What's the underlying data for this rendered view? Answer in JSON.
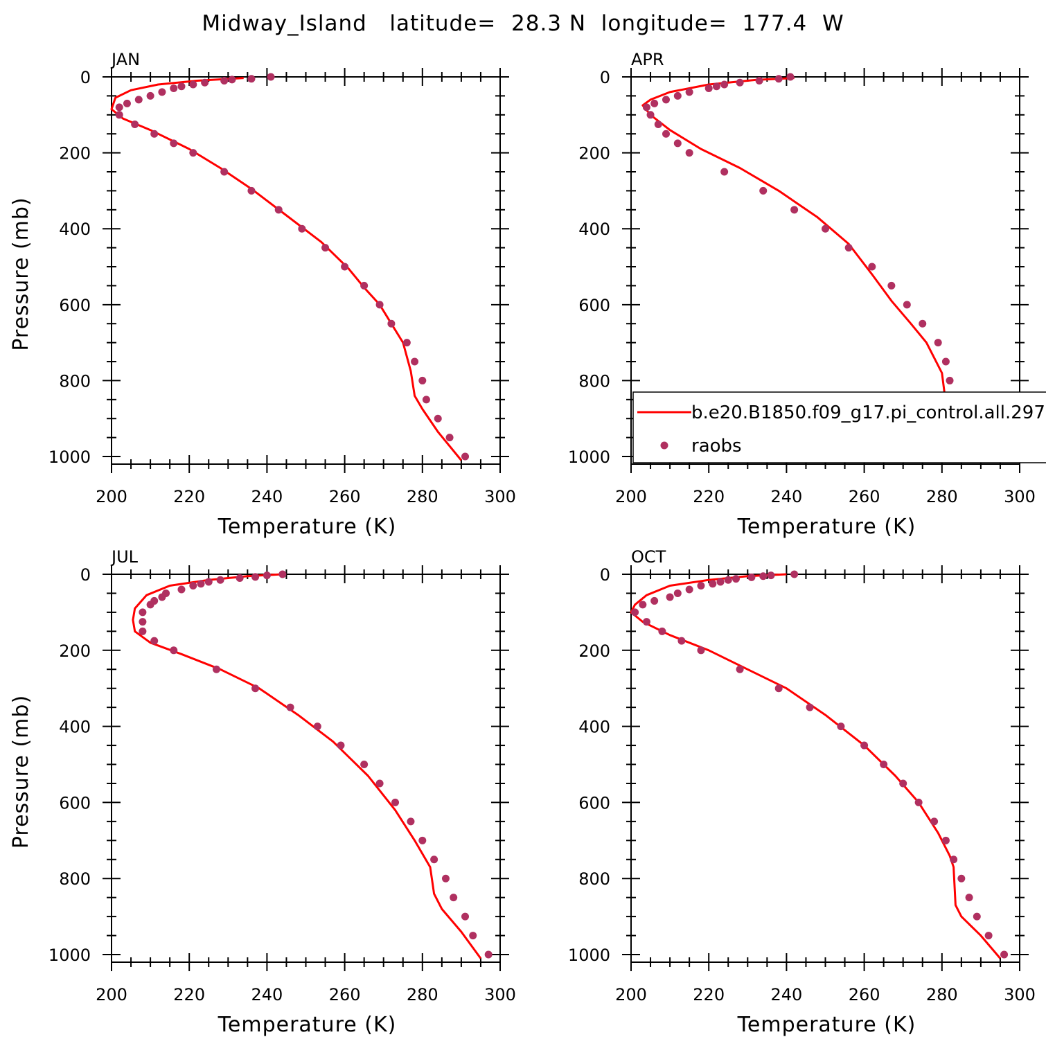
{
  "figure": {
    "title": "Midway_Island   latitude=  28.3 N  longitude=  177.4  W"
  },
  "legend": {
    "panel": 1,
    "entries": [
      {
        "label": "b.e20.B1850.f09_g17.pi_control.all.297",
        "color": "#ff0000",
        "marker": "line"
      },
      {
        "label": "raobs",
        "color": "#b03060",
        "marker": "dot"
      }
    ]
  },
  "chart_data": [
    {
      "type": "line",
      "title": "JAN",
      "xlabel": "Temperature (K)",
      "ylabel": "Pressure (mb)",
      "xlim": [
        200,
        300
      ],
      "ylim": [
        0,
        1020
      ],
      "y_inverted": true,
      "xticks": [
        200,
        220,
        240,
        260,
        280,
        300
      ],
      "yticks": [
        0,
        200,
        400,
        600,
        800,
        1000
      ],
      "grid": false,
      "series": [
        {
          "name": "b.e20.B1850.f09_g17.pi_control.all.297",
          "type": "line",
          "color": "#ff0000",
          "x": [
            234,
            222,
            212,
            205,
            201,
            200,
            203,
            210,
            220,
            228,
            236,
            245,
            254,
            261,
            265,
            269,
            272,
            275,
            277,
            278,
            280,
            284,
            290
          ],
          "y": [
            3,
            10,
            20,
            35,
            55,
            85,
            110,
            140,
            190,
            240,
            295,
            365,
            435,
            505,
            555,
            600,
            650,
            700,
            775,
            840,
            875,
            935,
            1010
          ]
        },
        {
          "name": "raobs",
          "type": "scatter",
          "color": "#b03060",
          "x": [
            241,
            236,
            231,
            229,
            224,
            221,
            218,
            216,
            213,
            210,
            207,
            204,
            202,
            202,
            206,
            211,
            216,
            221,
            229,
            236,
            243,
            249,
            255,
            260,
            265,
            269,
            272,
            276,
            278,
            280,
            281,
            284,
            287,
            291
          ],
          "y": [
            0,
            5,
            7,
            10,
            15,
            20,
            25,
            30,
            40,
            50,
            60,
            70,
            80,
            100,
            125,
            150,
            175,
            200,
            250,
            300,
            350,
            400,
            450,
            500,
            550,
            600,
            650,
            700,
            750,
            800,
            850,
            900,
            950,
            1000
          ]
        }
      ]
    },
    {
      "type": "line",
      "title": "APR",
      "xlabel": "Temperature (K)",
      "ylabel": "",
      "xlim": [
        200,
        300
      ],
      "ylim": [
        0,
        1020
      ],
      "y_inverted": true,
      "xticks": [
        200,
        220,
        240,
        260,
        280,
        300
      ],
      "yticks": [
        0,
        200,
        400,
        600,
        800,
        1000
      ],
      "grid": false,
      "series": [
        {
          "name": "b.e20.B1850.f09_g17.pi_control.all.297",
          "type": "line",
          "color": "#ff0000",
          "x": [
            242,
            232,
            220,
            210,
            205,
            203,
            205,
            210,
            218,
            228,
            238,
            248,
            256,
            262,
            267,
            272,
            276,
            279,
            280,
            281,
            283,
            286,
            290
          ],
          "y": [
            3,
            8,
            20,
            40,
            60,
            75,
            100,
            140,
            190,
            240,
            300,
            370,
            440,
            520,
            590,
            650,
            700,
            760,
            780,
            860,
            900,
            950,
            1015
          ]
        },
        {
          "name": "raobs",
          "type": "scatter",
          "color": "#b03060",
          "x": [
            241,
            238,
            233,
            228,
            224,
            222,
            220,
            215,
            212,
            209,
            206,
            204,
            205,
            207,
            209,
            212,
            215,
            224,
            234,
            242,
            250,
            256,
            262,
            267,
            271,
            275,
            279,
            281,
            282,
            283,
            284,
            288,
            291
          ],
          "y": [
            0,
            5,
            10,
            15,
            20,
            25,
            30,
            40,
            50,
            60,
            70,
            80,
            100,
            125,
            150,
            175,
            200,
            250,
            300,
            350,
            400,
            450,
            500,
            550,
            600,
            650,
            700,
            750,
            800,
            850,
            900,
            950,
            1000
          ]
        }
      ]
    },
    {
      "type": "line",
      "title": "JUL",
      "xlabel": "Temperature (K)",
      "ylabel": "Pressure (mb)",
      "xlim": [
        200,
        300
      ],
      "ylim": [
        0,
        1020
      ],
      "y_inverted": true,
      "xticks": [
        200,
        220,
        240,
        260,
        280,
        300
      ],
      "yticks": [
        0,
        200,
        400,
        600,
        800,
        1000
      ],
      "grid": false,
      "series": [
        {
          "name": "b.e20.B1850.f09_g17.pi_control.all.297",
          "type": "line",
          "color": "#ff0000",
          "x": [
            244,
            235,
            225,
            215,
            209,
            206,
            205.5,
            206,
            210,
            218,
            228,
            238,
            248,
            257,
            266,
            273,
            278,
            282,
            283,
            285,
            290,
            295
          ],
          "y": [
            0,
            5,
            15,
            30,
            55,
            90,
            120,
            150,
            180,
            210,
            250,
            300,
            370,
            440,
            530,
            620,
            700,
            770,
            840,
            880,
            940,
            1010
          ]
        },
        {
          "name": "raobs",
          "type": "scatter",
          "color": "#b03060",
          "x": [
            244,
            240,
            237,
            233,
            228,
            225,
            223,
            221,
            218,
            214,
            213,
            211,
            210,
            208,
            208,
            208,
            211,
            216,
            227,
            237,
            246,
            253,
            259,
            265,
            269,
            273,
            277,
            280,
            283,
            286,
            288,
            291,
            293,
            297
          ],
          "y": [
            0,
            3,
            7,
            10,
            15,
            20,
            25,
            30,
            40,
            50,
            60,
            70,
            80,
            100,
            125,
            150,
            175,
            200,
            250,
            300,
            350,
            400,
            450,
            500,
            550,
            600,
            650,
            700,
            750,
            800,
            850,
            900,
            950,
            1000
          ]
        }
      ]
    },
    {
      "type": "line",
      "title": "OCT",
      "xlabel": "Temperature (K)",
      "ylabel": "",
      "xlim": [
        200,
        300
      ],
      "ylim": [
        0,
        1020
      ],
      "y_inverted": true,
      "xticks": [
        200,
        220,
        240,
        260,
        280,
        300
      ],
      "yticks": [
        0,
        200,
        400,
        600,
        800,
        1000
      ],
      "grid": false,
      "series": [
        {
          "name": "b.e20.B1850.f09_g17.pi_control.all.297",
          "type": "line",
          "color": "#ff0000",
          "x": [
            240,
            230,
            220,
            210,
            204,
            201,
            200,
            203,
            210,
            220,
            230,
            240,
            250,
            260,
            268,
            274,
            279,
            282,
            283,
            283.5,
            285,
            290,
            295
          ],
          "y": [
            0,
            5,
            15,
            30,
            55,
            80,
            100,
            125,
            160,
            200,
            250,
            300,
            370,
            450,
            530,
            600,
            680,
            740,
            770,
            870,
            900,
            950,
            1010
          ]
        },
        {
          "name": "raobs",
          "type": "scatter",
          "color": "#b03060",
          "x": [
            242,
            236,
            234,
            231,
            227,
            225,
            223,
            221,
            218,
            215,
            212,
            210,
            206,
            203,
            201,
            204,
            208,
            213,
            218,
            228,
            238,
            246,
            254,
            260,
            265,
            270,
            274,
            278,
            281,
            283,
            285,
            287,
            289,
            292,
            296
          ],
          "y": [
            0,
            3,
            5,
            8,
            12,
            15,
            20,
            25,
            30,
            40,
            50,
            60,
            70,
            80,
            100,
            125,
            150,
            175,
            200,
            250,
            300,
            350,
            400,
            450,
            500,
            550,
            600,
            650,
            700,
            750,
            800,
            850,
            900,
            950,
            1000
          ]
        }
      ]
    }
  ]
}
